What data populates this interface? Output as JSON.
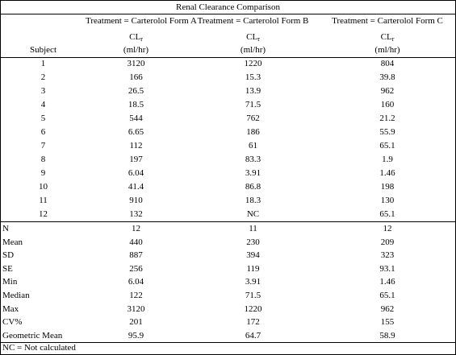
{
  "title": "Renal Clearance Comparison",
  "treatments": [
    "Treatment = Carterolol Form A",
    "Treatment = Carterolol Form B",
    "Treatment = Carterolol Form C"
  ],
  "param": {
    "base": "CL",
    "sub": "r"
  },
  "units": "(ml/hr)",
  "subject_header": "Subject",
  "subjects": [
    {
      "id": "1",
      "a": "3120",
      "b": "1220",
      "c": "804"
    },
    {
      "id": "2",
      "a": "166",
      "b": "15.3",
      "c": "39.8"
    },
    {
      "id": "3",
      "a": "26.5",
      "b": "13.9",
      "c": "962"
    },
    {
      "id": "4",
      "a": "18.5",
      "b": "71.5",
      "c": "160"
    },
    {
      "id": "5",
      "a": "544",
      "b": "762",
      "c": "21.2"
    },
    {
      "id": "6",
      "a": "6.65",
      "b": "186",
      "c": "55.9"
    },
    {
      "id": "7",
      "a": "112",
      "b": "61",
      "c": "65.1"
    },
    {
      "id": "8",
      "a": "197",
      "b": "83.3",
      "c": "1.9"
    },
    {
      "id": "9",
      "a": "6.04",
      "b": "3.91",
      "c": "1.46"
    },
    {
      "id": "10",
      "a": "41.4",
      "b": "86.8",
      "c": "198"
    },
    {
      "id": "11",
      "a": "910",
      "b": "18.3",
      "c": "130"
    },
    {
      "id": "12",
      "a": "132",
      "b": "NC",
      "c": "65.1"
    }
  ],
  "stats": [
    {
      "label": "N",
      "a": "12",
      "b": "11",
      "c": "12"
    },
    {
      "label": "Mean",
      "a": "440",
      "b": "230",
      "c": "209"
    },
    {
      "label": "SD",
      "a": "887",
      "b": "394",
      "c": "323"
    },
    {
      "label": "SE",
      "a": "256",
      "b": "119",
      "c": "93.1"
    },
    {
      "label": "Min",
      "a": "6.04",
      "b": "3.91",
      "c": "1.46"
    },
    {
      "label": "Median",
      "a": "122",
      "b": "71.5",
      "c": "65.1"
    },
    {
      "label": "Max",
      "a": "3120",
      "b": "1220",
      "c": "962"
    },
    {
      "label": "CV%",
      "a": "201",
      "b": "172",
      "c": "155"
    },
    {
      "label": "Geometric Mean",
      "a": "95.9",
      "b": "64.7",
      "c": "58.9"
    }
  ],
  "footnote": "NC = Not calculated"
}
